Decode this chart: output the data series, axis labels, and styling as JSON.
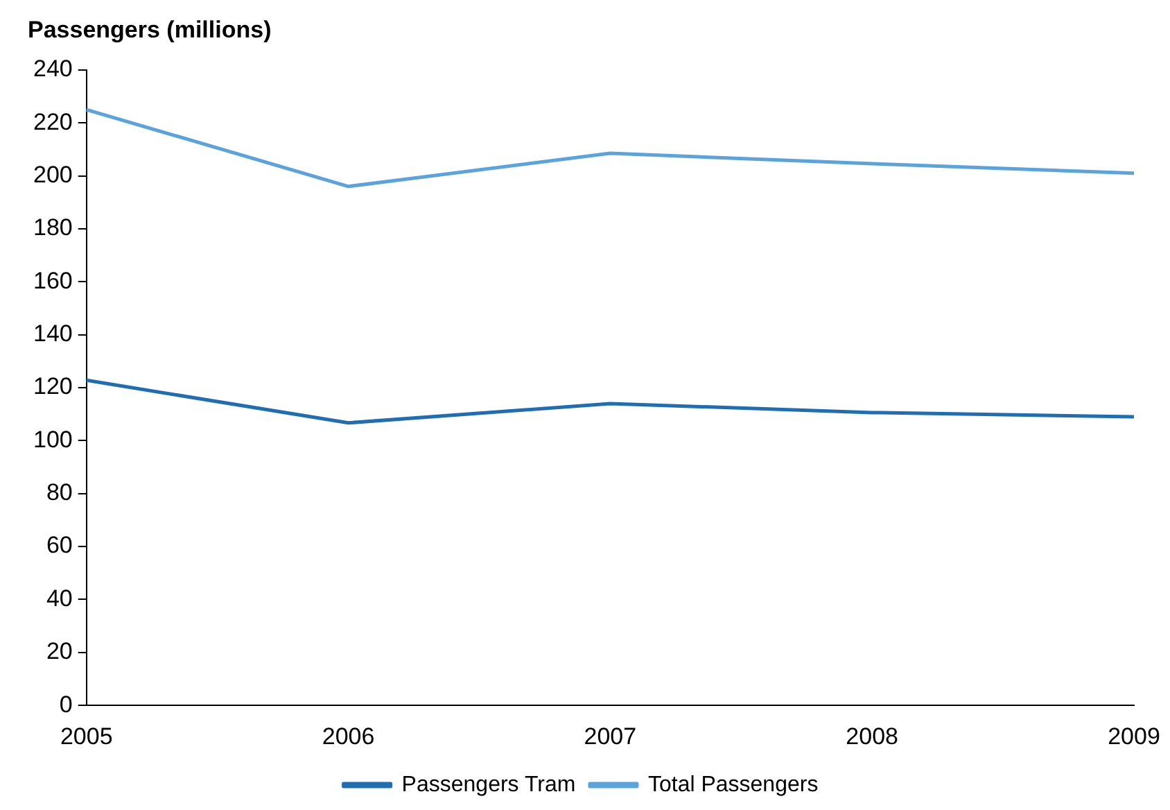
{
  "chart_data": {
    "type": "line",
    "ylabel": "Passengers (millions)",
    "categories": [
      "2005",
      "2006",
      "2007",
      "2008",
      "2009"
    ],
    "series": [
      {
        "name": "Passengers Tram",
        "color": "#1f6db3",
        "values": [
          122.8,
          106.7,
          114,
          110.6,
          109
        ]
      },
      {
        "name": "Total Passengers",
        "color": "#5ba3dd",
        "values": [
          225,
          196,
          208.5,
          204.6,
          201
        ]
      }
    ],
    "ylim": [
      0,
      240
    ],
    "yticks": [
      0,
      20,
      40,
      60,
      80,
      100,
      120,
      140,
      160,
      180,
      200,
      220,
      240
    ],
    "grid": false,
    "legend": "bottom",
    "marker": "none",
    "line_style": "solid"
  }
}
